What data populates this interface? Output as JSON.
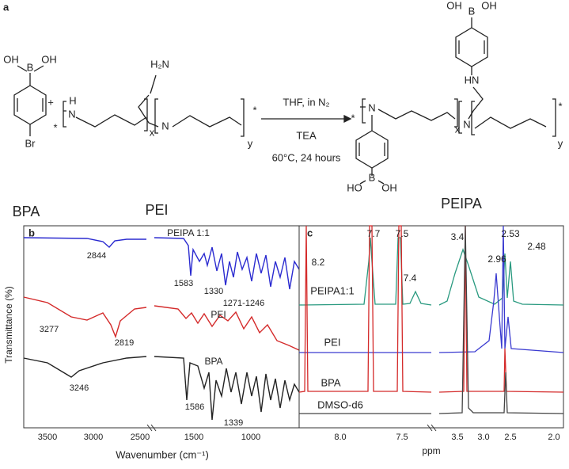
{
  "scheme": {
    "panel_label": "a",
    "bpa": {
      "oh_left": "OH",
      "boron": "B",
      "oh_right": "OH",
      "bromo": "Br"
    },
    "plus": "+",
    "pei": {
      "end_left": "*",
      "h": "H",
      "n_backbone": "N",
      "amine": "H₂N",
      "n_branch": "N",
      "x": "x",
      "y": "y",
      "end_right": "*"
    },
    "conditions": {
      "solvent": "THF, in N₂",
      "base": "TEA",
      "temperature": "60°C, 24 hours"
    },
    "product": {
      "end_left": "*",
      "n_aryl": "N",
      "ho_bottom": "HO",
      "boron_bottom": "B",
      "oh_bottom": "OH",
      "oh_top_left": "OH",
      "boron_top": "B",
      "oh_top_right": "OH",
      "hn": "HN",
      "n_branch": "N",
      "x": "x",
      "y": "y",
      "end_right": "*"
    }
  },
  "compound_labels": {
    "bpa": "BPA",
    "pei": "PEI",
    "peipa": "PEIPA"
  },
  "ir_panel": {
    "panel_label": "b",
    "x_label": "Wavenumber (cm⁻¹)",
    "y_label": "Transmittance (%)",
    "x_ticks": [
      "3500",
      "3000",
      "2500",
      "1500",
      "1000"
    ],
    "annotations": [
      "2844",
      "PEIPA 1:1",
      "1583",
      "1330",
      "1271-1246",
      "3277",
      "2819",
      "PEI",
      "3246",
      "BPA",
      "1586",
      "1339"
    ]
  },
  "nmr_panel": {
    "panel_label": "c",
    "x_label": "ppm",
    "x_ticks": [
      "8.0",
      "7.5",
      "3.5",
      "3.0",
      "2.5",
      "2.0"
    ],
    "annotations": [
      "7.7",
      "7.5",
      "8.2",
      "7.4",
      "3.4",
      "2.96",
      "2.53",
      "2.48",
      "PEIPA1:1",
      "PEI",
      "BPA",
      "DMSO-d6"
    ]
  }
}
